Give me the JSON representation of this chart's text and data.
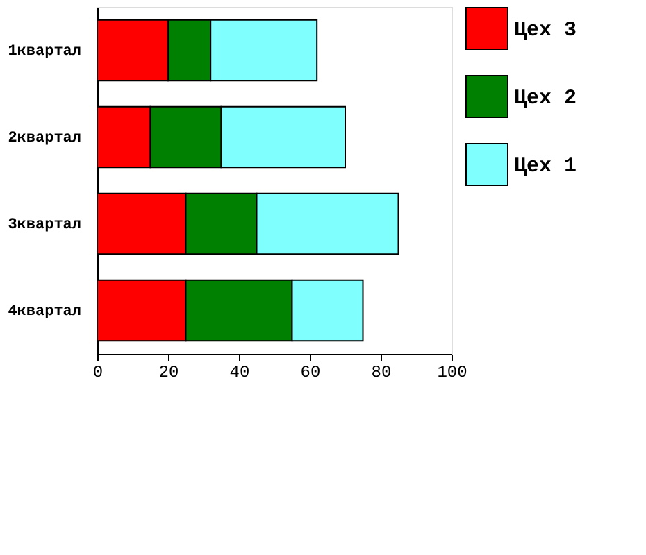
{
  "chart_data": {
    "type": "bar",
    "orientation": "horizontal",
    "stacked": true,
    "categories": [
      "1квартал",
      "2квартал",
      "3квартал",
      "4квартал"
    ],
    "series": [
      {
        "name": "Цех 3",
        "color": "#ff0000",
        "values": [
          20,
          15,
          25,
          25
        ]
      },
      {
        "name": "Цех 2",
        "color": "#008000",
        "values": [
          12,
          20,
          20,
          30
        ]
      },
      {
        "name": "Цех 1",
        "color": "#80ffff",
        "values": [
          30,
          35,
          40,
          20
        ]
      }
    ],
    "xlim": [
      0,
      100
    ],
    "xticks": [
      0,
      20,
      40,
      60,
      80,
      100
    ],
    "grid": false,
    "legend": "right"
  }
}
